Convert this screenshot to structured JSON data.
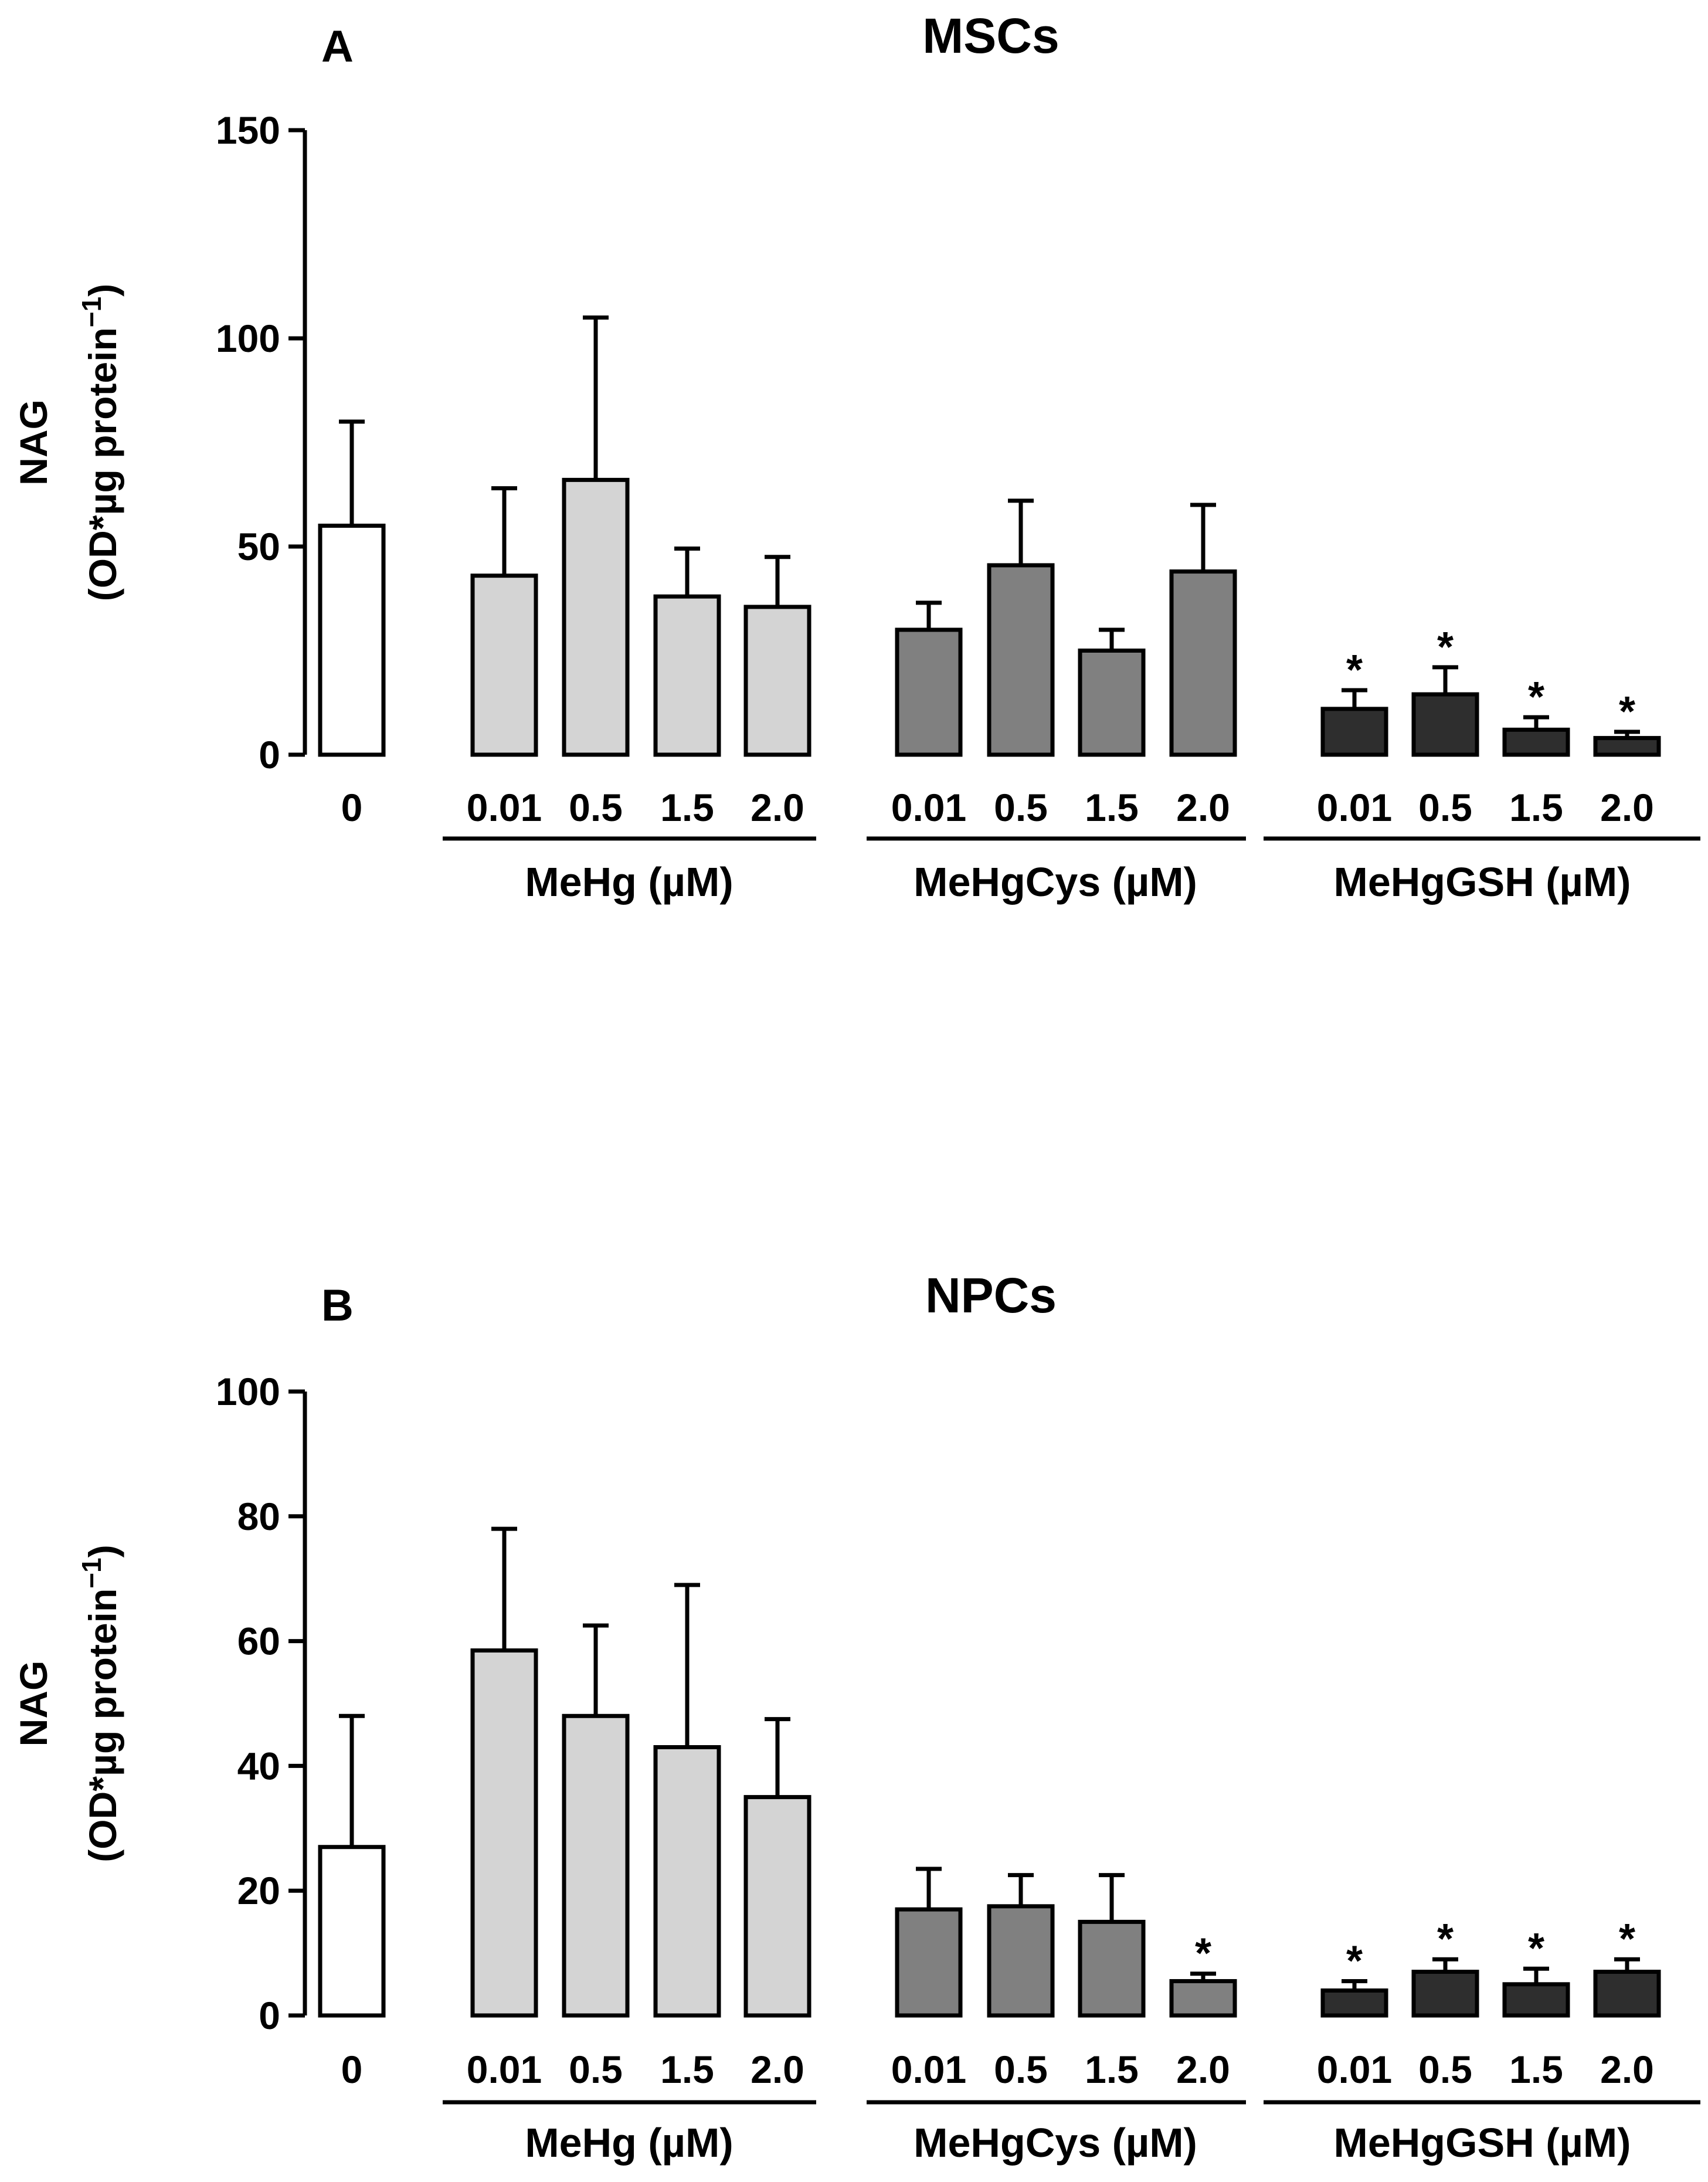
{
  "figure_legend": {
    "group_labels": [
      "MeHg (µM)",
      "MeHgCys (µM)",
      "MeHgGSH (µM)"
    ],
    "control_label": "0",
    "doses": [
      "0.01",
      "0.5",
      "1.5",
      "2.0"
    ],
    "significance_marker": "*"
  },
  "chart_data": [
    {
      "type": "bar",
      "panel": "A",
      "title": "MSCs",
      "ylabel_line1": "NAG",
      "ylabel_line2": "(OD*µg protein",
      "ylabel_sup": "−1",
      "ylabel_close": ")",
      "ylim": [
        0,
        150
      ],
      "yticks": [
        0,
        50,
        100,
        150
      ],
      "colors": {
        "control": "#ffffff",
        "MeHg": "#d4d4d4",
        "MeHgCys": "#808080",
        "MeHgGSH": "#2e2e2e"
      },
      "bars": [
        {
          "group": "control",
          "label": "0",
          "value": 55,
          "err": 25,
          "sig": false
        },
        {
          "group": "MeHg",
          "label": "0.01",
          "value": 43,
          "err": 21,
          "sig": false
        },
        {
          "group": "MeHg",
          "label": "0.5",
          "value": 66,
          "err": 39,
          "sig": false
        },
        {
          "group": "MeHg",
          "label": "1.5",
          "value": 38,
          "err": 11.5,
          "sig": false
        },
        {
          "group": "MeHg",
          "label": "2.0",
          "value": 35.5,
          "err": 12,
          "sig": false
        },
        {
          "group": "MeHgCys",
          "label": "0.01",
          "value": 30,
          "err": 6.5,
          "sig": false
        },
        {
          "group": "MeHgCys",
          "label": "0.5",
          "value": 45.5,
          "err": 15.5,
          "sig": false
        },
        {
          "group": "MeHgCys",
          "label": "1.5",
          "value": 25,
          "err": 5,
          "sig": false
        },
        {
          "group": "MeHgCys",
          "label": "2.0",
          "value": 44,
          "err": 16,
          "sig": false
        },
        {
          "group": "MeHgGSH",
          "label": "0.01",
          "value": 11,
          "err": 4.5,
          "sig": true
        },
        {
          "group": "MeHgGSH",
          "label": "0.5",
          "value": 14.5,
          "err": 6.5,
          "sig": true
        },
        {
          "group": "MeHgGSH",
          "label": "1.5",
          "value": 6,
          "err": 3,
          "sig": true
        },
        {
          "group": "MeHgGSH",
          "label": "2.0",
          "value": 4,
          "err": 1.5,
          "sig": true
        }
      ]
    },
    {
      "type": "bar",
      "panel": "B",
      "title": "NPCs",
      "ylabel_line1": "NAG",
      "ylabel_line2": "(OD*µg protein",
      "ylabel_sup": "−1",
      "ylabel_close": ")",
      "ylim": [
        0,
        100
      ],
      "yticks": [
        0,
        20,
        40,
        60,
        80,
        100
      ],
      "colors": {
        "control": "#ffffff",
        "MeHg": "#d4d4d4",
        "MeHgCys": "#808080",
        "MeHgGSH": "#2e2e2e"
      },
      "bars": [
        {
          "group": "control",
          "label": "0",
          "value": 27,
          "err": 21,
          "sig": false
        },
        {
          "group": "MeHg",
          "label": "0.01",
          "value": 58.5,
          "err": 19.5,
          "sig": false
        },
        {
          "group": "MeHg",
          "label": "0.5",
          "value": 48,
          "err": 14.5,
          "sig": false
        },
        {
          "group": "MeHg",
          "label": "1.5",
          "value": 43,
          "err": 26,
          "sig": false
        },
        {
          "group": "MeHg",
          "label": "2.0",
          "value": 35,
          "err": 12.5,
          "sig": false
        },
        {
          "group": "MeHgCys",
          "label": "0.01",
          "value": 17,
          "err": 6.5,
          "sig": false
        },
        {
          "group": "MeHgCys",
          "label": "0.5",
          "value": 17.5,
          "err": 5,
          "sig": false
        },
        {
          "group": "MeHgCys",
          "label": "1.5",
          "value": 15,
          "err": 7.5,
          "sig": false
        },
        {
          "group": "MeHgCys",
          "label": "2.0",
          "value": 5.5,
          "err": 1.2,
          "sig": true
        },
        {
          "group": "MeHgGSH",
          "label": "0.01",
          "value": 4,
          "err": 1.5,
          "sig": true
        },
        {
          "group": "MeHgGSH",
          "label": "0.5",
          "value": 7,
          "err": 2,
          "sig": true
        },
        {
          "group": "MeHgGSH",
          "label": "1.5",
          "value": 5,
          "err": 2.5,
          "sig": true
        },
        {
          "group": "MeHgGSH",
          "label": "2.0",
          "value": 7,
          "err": 2,
          "sig": true
        }
      ]
    }
  ]
}
